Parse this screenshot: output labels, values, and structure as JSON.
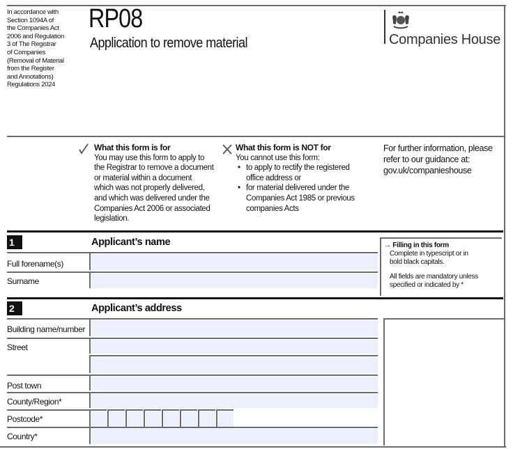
{
  "header": {
    "legal_note": [
      "In accordance with",
      "Section 1094A of",
      "the Companies Act",
      "2006 and Regulation",
      "3 of The Registrar",
      "of Companies",
      "(Removal of Material",
      "from the Register",
      "and Annotations)",
      "Regulations 2024"
    ],
    "form_code": "RP08",
    "form_title": "Application to remove material",
    "brand": "Companies House"
  },
  "info": {
    "for": {
      "icon": "check-icon",
      "heading": "What this form is for",
      "lines": [
        "You may use this form to apply to",
        "the Registrar to remove a document",
        "or material within a document",
        "which was not properly delivered,",
        "and which was delivered under the",
        "Companies Act 2006 or associated",
        "legislation."
      ]
    },
    "not_for": {
      "icon": "cross-icon",
      "heading": "What this form is NOT for",
      "intro": "You cannot use this form:",
      "bullets": [
        [
          "to apply to rectify the registered",
          "office address or"
        ],
        [
          "for material delivered under the",
          "Companies Act 1985 or previous",
          "companies Acts"
        ]
      ]
    },
    "further": [
      "For further information, please",
      "refer to our guidance at:",
      "gov.uk/companieshouse"
    ]
  },
  "guidance": {
    "heading": "Filling in this form",
    "text1": [
      "Complete in typescript or in",
      "bold black capitals."
    ],
    "text2": [
      "All fields are mandatory unless",
      "specified or indicated by *"
    ]
  },
  "section1": {
    "number": "1",
    "title": "Applicant’s name",
    "fields": {
      "forename": "Full forename(s)",
      "surname": "Surname"
    }
  },
  "section2": {
    "number": "2",
    "title": "Applicant’s address",
    "fields": {
      "building": "Building name/number",
      "street": "Street",
      "post_town": "Post town",
      "county": "County/Region*",
      "postcode": "Postcode*",
      "country": "Country*"
    }
  },
  "colors": {
    "field_bg": "#edf0fc",
    "rule": "#6b6b6b",
    "section_bar": "#111111"
  }
}
